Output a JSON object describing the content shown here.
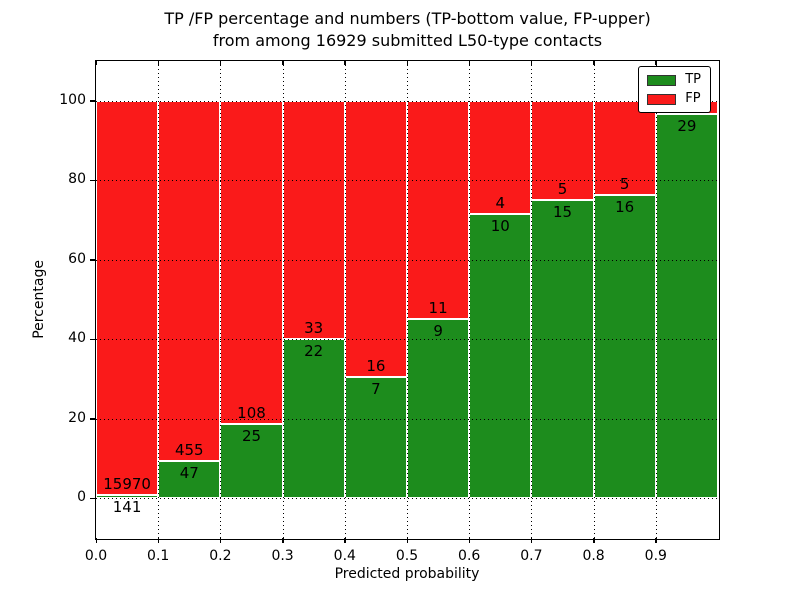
{
  "title": {
    "line1": "TP /FP percentage and numbers (TP-bottom value, FP-upper)",
    "line2": "from among 16929 submitted L50-type contacts"
  },
  "colors": {
    "tp_green": "#1d8c1d",
    "fp_red": "#fa1a1a",
    "frame": "#000000",
    "background": "#ffffff"
  },
  "chart_data": {
    "type": "bar",
    "stacked": true,
    "title": "TP /FP percentage and numbers (TP-bottom value, FP-upper) from among 16929 submitted L50-type contacts",
    "xlabel": "Predicted probability",
    "ylabel": "Percentage",
    "xlim": [
      0.0,
      1.0
    ],
    "ylim": [
      -10,
      110
    ],
    "grid": "dotted",
    "legend_position": "upper right",
    "xtick_labels": [
      "0.0",
      "0.1",
      "0.2",
      "0.3",
      "0.4",
      "0.5",
      "0.6",
      "0.7",
      "0.8",
      "0.9"
    ],
    "ytick_values": [
      0,
      20,
      40,
      60,
      80,
      100
    ],
    "ytick_labels": [
      "0",
      "20",
      "40",
      "60",
      "80",
      "100"
    ],
    "total_contacts": 16929,
    "series": [
      {
        "name": "TP",
        "color": "#1d8c1d"
      },
      {
        "name": "FP",
        "color": "#fa1a1a"
      }
    ],
    "categories": [
      "0.0-0.1",
      "0.1-0.2",
      "0.2-0.3",
      "0.3-0.4",
      "0.4-0.5",
      "0.5-0.6",
      "0.6-0.7",
      "0.7-0.8",
      "0.8-0.9",
      "0.9-1.0"
    ],
    "bars": [
      {
        "x_start": 0.0,
        "x_end": 0.1,
        "tp_count_label": "141",
        "fp_count_label": "15970",
        "tp_pct": 0.88
      },
      {
        "x_start": 0.1,
        "x_end": 0.2,
        "tp_count_label": "47",
        "fp_count_label": "455",
        "tp_pct": 9.36
      },
      {
        "x_start": 0.2,
        "x_end": 0.3,
        "tp_count_label": "25",
        "fp_count_label": "108",
        "tp_pct": 18.8
      },
      {
        "x_start": 0.3,
        "x_end": 0.4,
        "tp_count_label": "22",
        "fp_count_label": "33",
        "tp_pct": 40.0
      },
      {
        "x_start": 0.4,
        "x_end": 0.5,
        "tp_count_label": "7",
        "fp_count_label": "16",
        "tp_pct": 30.43
      },
      {
        "x_start": 0.5,
        "x_end": 0.6,
        "tp_count_label": "9",
        "fp_count_label": "11",
        "tp_pct": 45.0
      },
      {
        "x_start": 0.6,
        "x_end": 0.7,
        "tp_count_label": "10",
        "fp_count_label": "4",
        "tp_pct": 71.43
      },
      {
        "x_start": 0.7,
        "x_end": 0.8,
        "tp_count_label": "15",
        "fp_count_label": "5",
        "tp_pct": 75.0
      },
      {
        "x_start": 0.8,
        "x_end": 0.9,
        "tp_count_label": "16",
        "fp_count_label": "5",
        "tp_pct": 76.19
      },
      {
        "x_start": 0.9,
        "x_end": 1.0,
        "tp_count_label": "29",
        "fp_count_label": "",
        "tp_pct": 96.67
      }
    ]
  },
  "legend": {
    "items": [
      {
        "label": "TP"
      },
      {
        "label": "FP"
      }
    ]
  }
}
